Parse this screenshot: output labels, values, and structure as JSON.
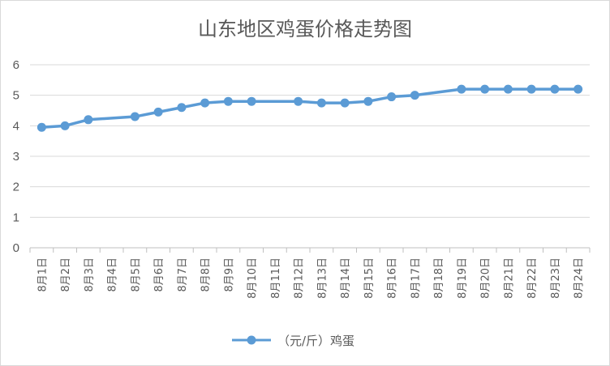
{
  "chart_data": {
    "type": "line",
    "title": "山东地区鸡蛋价格走势图",
    "categories": [
      "8月1日",
      "8月2日",
      "8月3日",
      "8月4日",
      "8月5日",
      "8月6日",
      "8月7日",
      "8月8日",
      "8月9日",
      "8月10日",
      "8月11日",
      "8月12日",
      "8月13日",
      "8月14日",
      "8月15日",
      "8月16日",
      "8月17日",
      "8月18日",
      "8月19日",
      "8月20日",
      "8月21日",
      "8月22日",
      "8月23日",
      "8月24日"
    ],
    "series": [
      {
        "name": "（元/斤）鸡蛋",
        "values": [
          3.95,
          4.0,
          4.2,
          null,
          4.3,
          4.45,
          4.6,
          4.75,
          4.8,
          4.8,
          null,
          4.8,
          4.75,
          4.75,
          4.8,
          4.95,
          5.0,
          null,
          5.2,
          5.2,
          5.2,
          5.2,
          5.2,
          5.2
        ]
      }
    ],
    "ylim": [
      0,
      6
    ],
    "yticks": [
      0,
      1,
      2,
      3,
      4,
      5,
      6
    ],
    "grid": true,
    "legend": "bottom",
    "colors": {
      "series": "#5b9bd5",
      "grid": "#d9d9d9",
      "text": "#595959"
    }
  }
}
